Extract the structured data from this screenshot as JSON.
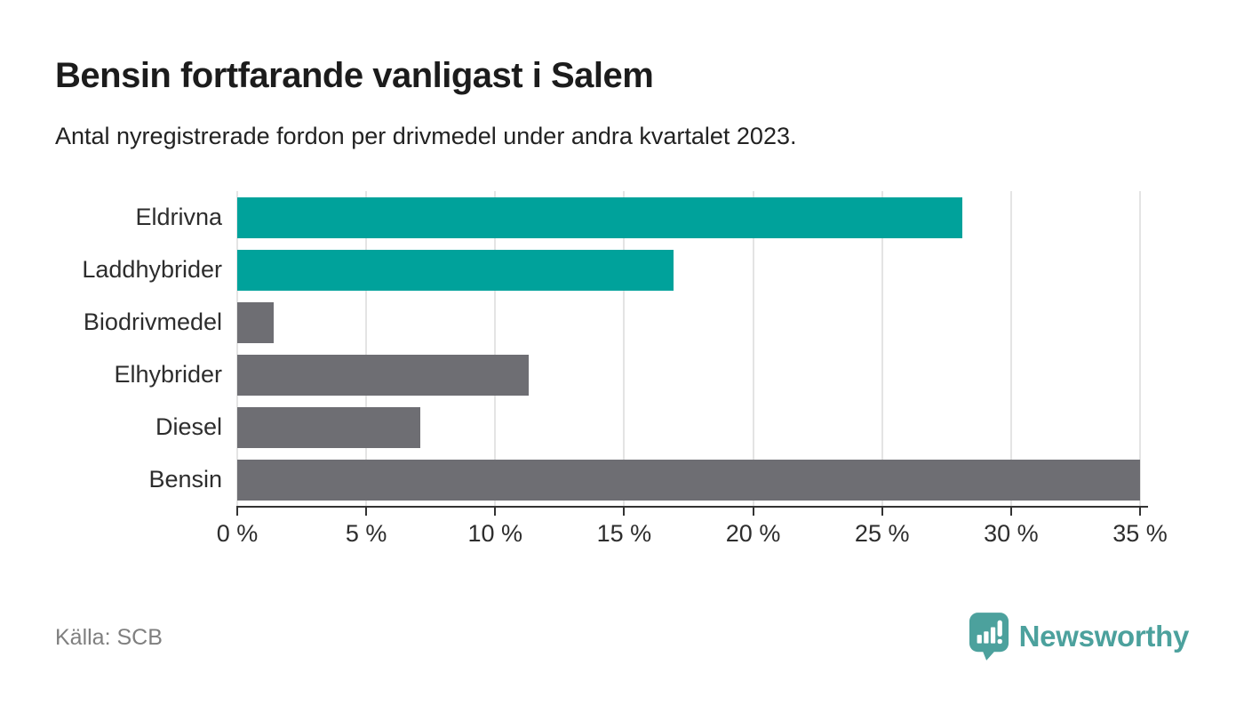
{
  "header": {
    "title": "Bensin fortfarande vanligast i Salem",
    "subtitle": "Antal nyregistrerade fordon per drivmedel under andra kvartalet 2023."
  },
  "footer": {
    "source": "Källa: SCB",
    "brand_name": "Newsworthy"
  },
  "colors": {
    "highlight": "#00a29b",
    "default_bar": "#6e6e73",
    "gridline": "#e4e4e4",
    "axis": "#333333",
    "logo_teal": "#4ca19d"
  },
  "chart_data": {
    "type": "bar",
    "orientation": "horizontal",
    "title": "Bensin fortfarande vanligast i Salem",
    "subtitle": "Antal nyregistrerade fordon per drivmedel under andra kvartalet 2023.",
    "categories": [
      "Eldrivna",
      "Laddhybrider",
      "Biodrivmedel",
      "Elhybrider",
      "Diesel",
      "Bensin"
    ],
    "values": [
      28.1,
      16.9,
      1.4,
      11.3,
      7.1,
      35.1
    ],
    "bar_colors": [
      "#00a29b",
      "#00a29b",
      "#6e6e73",
      "#6e6e73",
      "#6e6e73",
      "#6e6e73"
    ],
    "xlabel": "",
    "ylabel": "",
    "xlim": [
      0,
      35
    ],
    "x_tick_step": 5,
    "x_tick_labels": [
      "0 %",
      "5 %",
      "10 %",
      "15 %",
      "20 %",
      "25 %",
      "30 %",
      "35 %"
    ],
    "grid": "vertical",
    "legend": "none",
    "unit": "%"
  }
}
